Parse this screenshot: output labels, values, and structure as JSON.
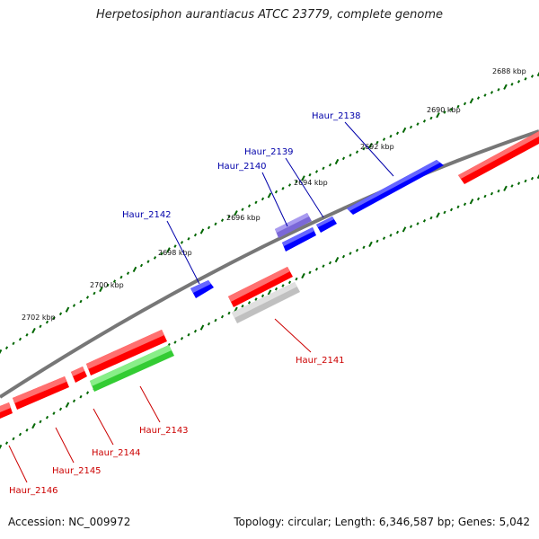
{
  "title": "Herpetosiphon aurantiacus ATCC 23779, complete genome",
  "footer": {
    "accession": "Accession: NC_009972",
    "stats": "Topology: circular; Length: 6,346,587 bp; Genes: 5,042"
  },
  "colors": {
    "forward_gene": "#0000ff",
    "forward_gene_alt": "#7b68d8",
    "reverse_gene": "#ff0000",
    "reverse_gene_alt": "#33cc33",
    "gray_gene": "#c0c0c0",
    "tick": "#006600",
    "backbone": "#777777",
    "forward_label": "#0000aa",
    "reverse_label": "#cc0000"
  },
  "scale_labels": [
    "2688 kbp",
    "2690 kbp",
    "2692 kbp",
    "2694 kbp",
    "2696 kbp",
    "2698 kbp",
    "2700 kbp",
    "2702 kbp"
  ],
  "forward_genes": [
    {
      "label": "Haur_2138",
      "color": "#0000ff"
    },
    {
      "label": "Haur_2139",
      "color": "#0000ff"
    },
    {
      "label": "Haur_2140",
      "color": "#7b68d8"
    },
    {
      "label": "Haur_2142",
      "color": "#0000ff"
    }
  ],
  "reverse_genes": [
    {
      "label": "Haur_2141",
      "color": "#c0c0c0"
    },
    {
      "label": "Haur_2143",
      "color": "#33cc33"
    },
    {
      "label": "Haur_2144",
      "color": "#ff0000"
    },
    {
      "label": "Haur_2145",
      "color": "#ff0000"
    },
    {
      "label": "Haur_2146",
      "color": "#ff0000"
    }
  ]
}
